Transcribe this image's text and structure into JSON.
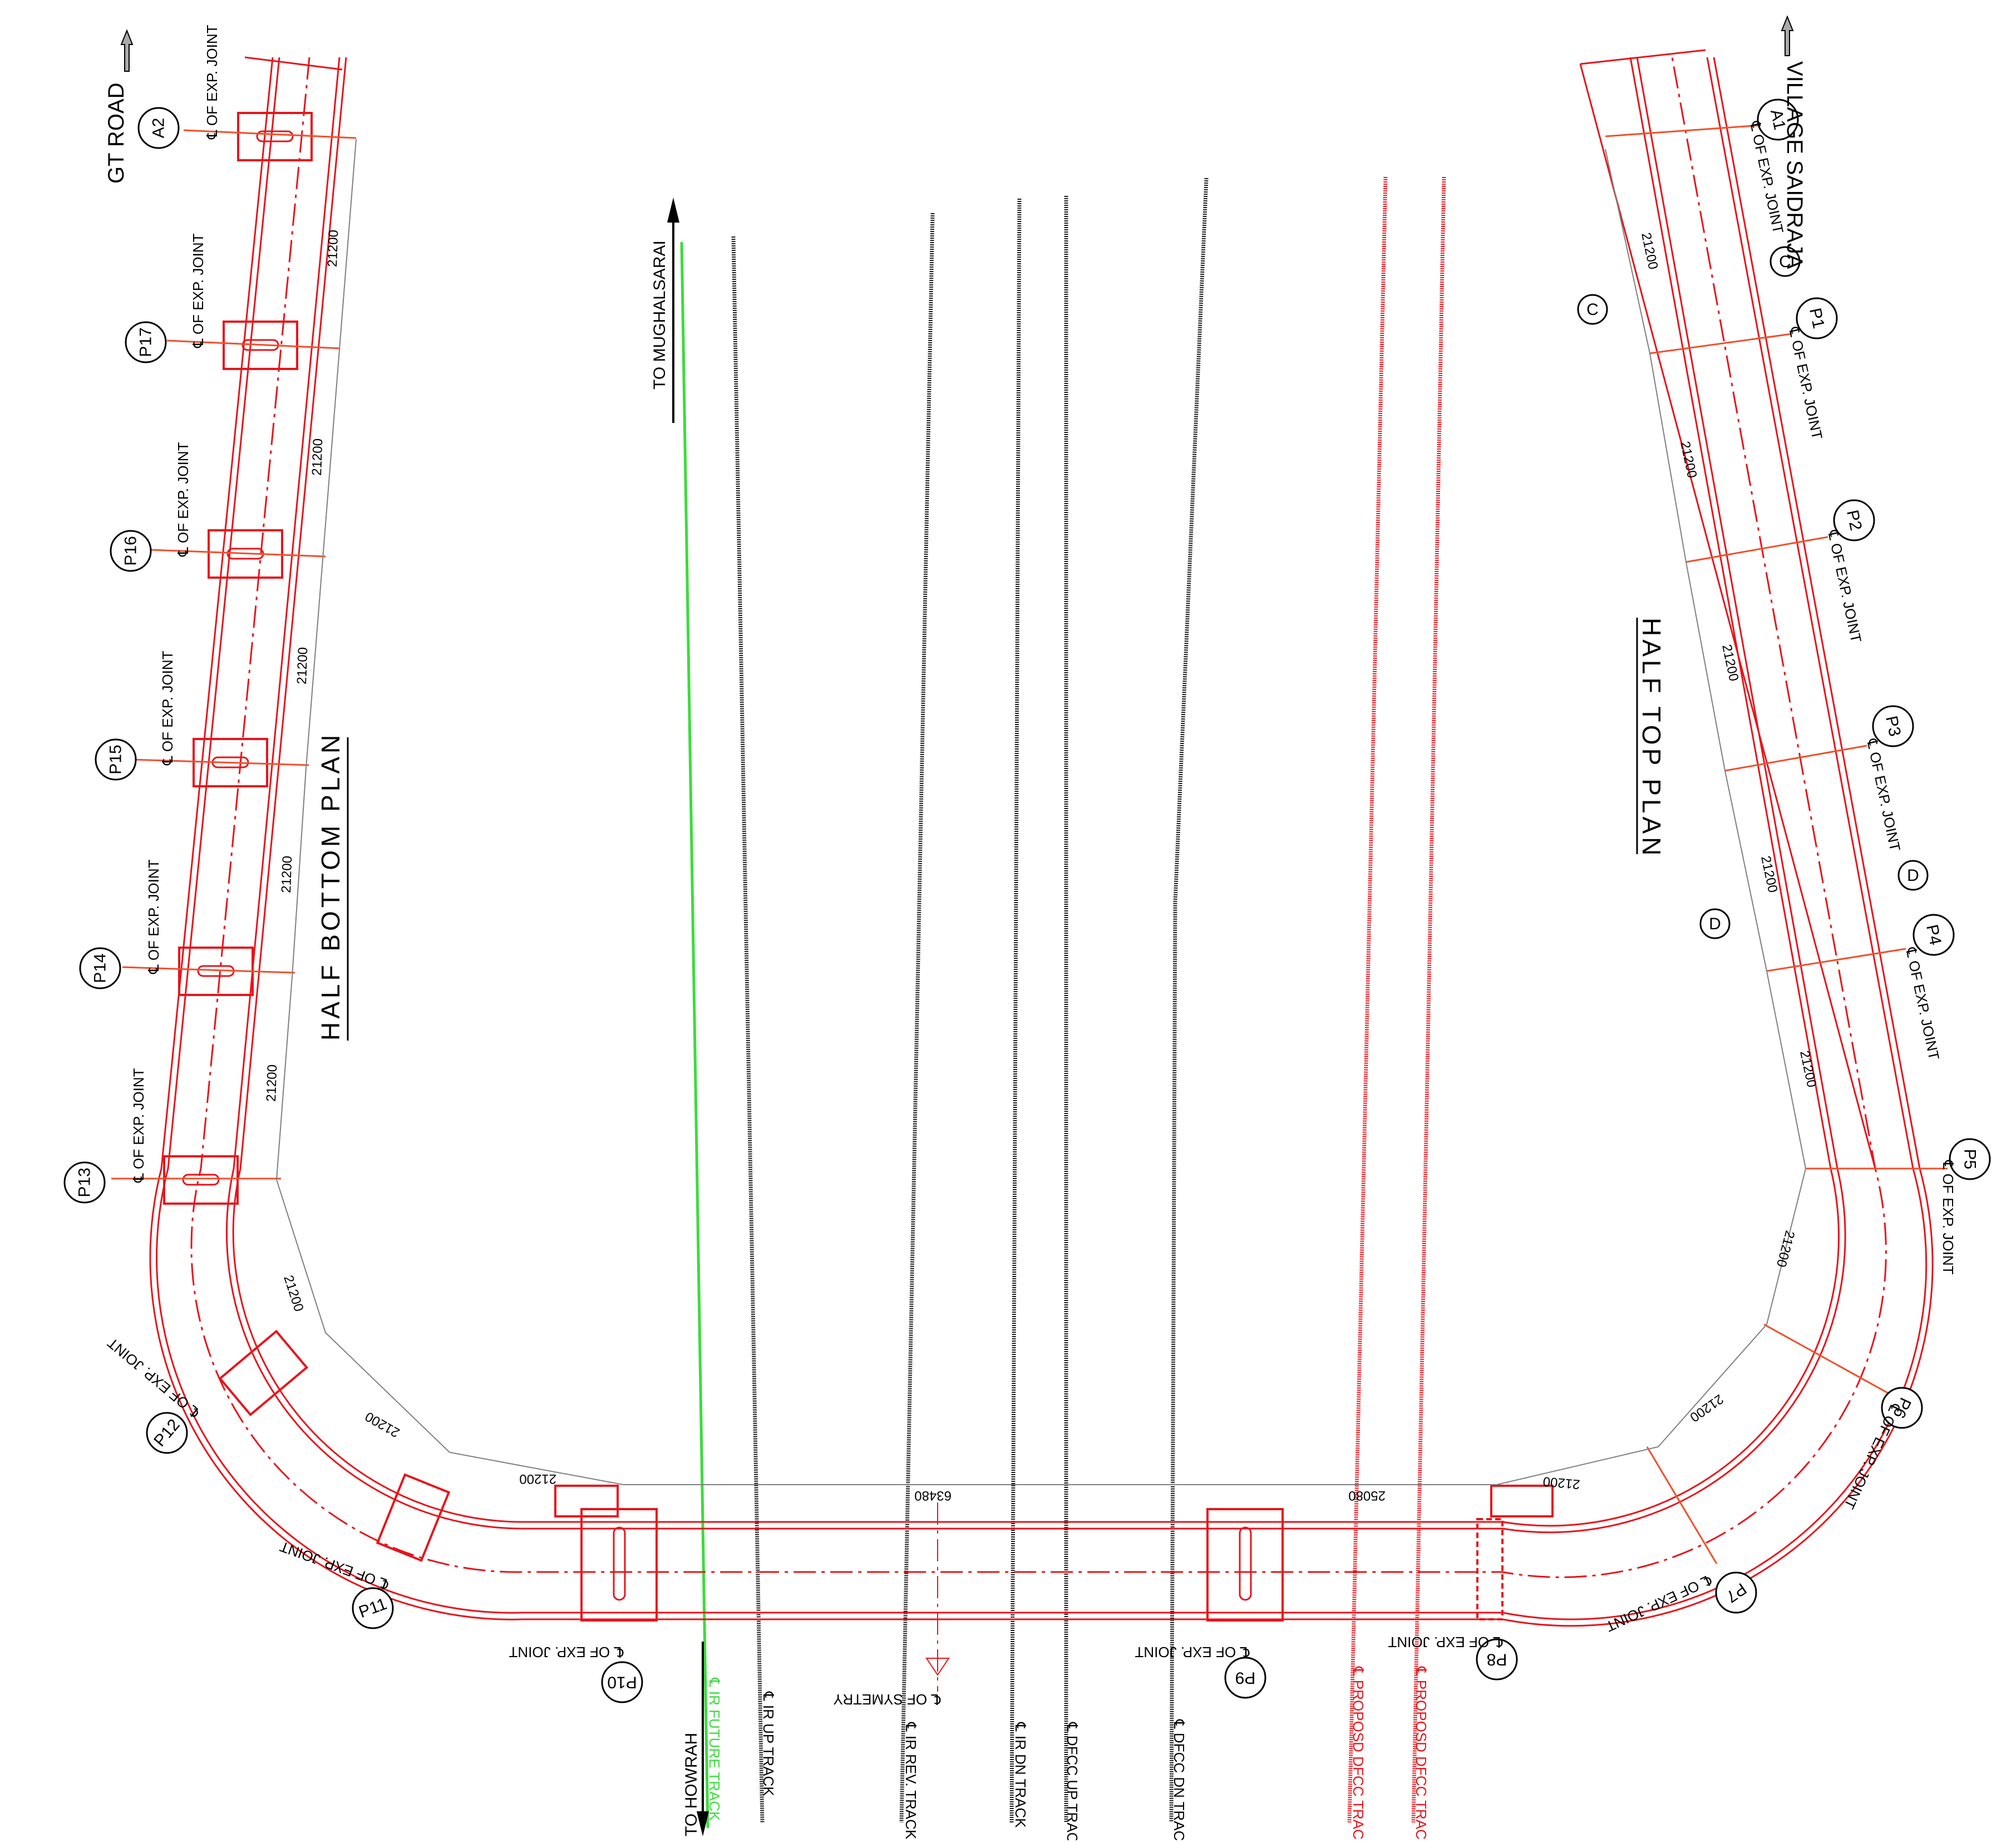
{
  "labels": {
    "gt_road": "GT ROAD",
    "village": "VILLAGE SAIDRAJA",
    "to_mughalsarai": "TO MUGHALSARAI",
    "to_howrah": "TO HOWRAH",
    "half_bottom_plan": "HALF BOTTOM PLAN",
    "half_top_plan": "HALF TOP PLAN",
    "exp_joint": "℄ OF EXP. JOINT",
    "symmetry": "℄ OF SYMETRY",
    "section_c": "C",
    "section_d": "D"
  },
  "piers": [
    "A2",
    "P17",
    "P16",
    "P15",
    "P14",
    "P13",
    "P12",
    "P11",
    "P10",
    "P9",
    "P8",
    "P7",
    "P6",
    "P5",
    "P4",
    "P3",
    "P2",
    "P1",
    "A1"
  ],
  "dimensions": {
    "span": "21200",
    "centre": "63480",
    "half_span": "25080"
  },
  "tracks": [
    "℄ IR FUTURE TRACK",
    "℄ IR UP TRACK",
    "℄ IR REV. TRACK",
    "℄ IR DN TRACK",
    "℄ DFCC UP TRACK",
    "℄ DFCC DN TRACK",
    "℄ PROPOSD DFCC TRACK",
    "℄ PROPOSD DFCC TRACK"
  ],
  "colors": {
    "structure": "#e8141b",
    "dimension": "#808080",
    "ir_track": "#1a1a1a",
    "future_track": "#3cdc3c",
    "proposed_track": "#e8141b"
  }
}
